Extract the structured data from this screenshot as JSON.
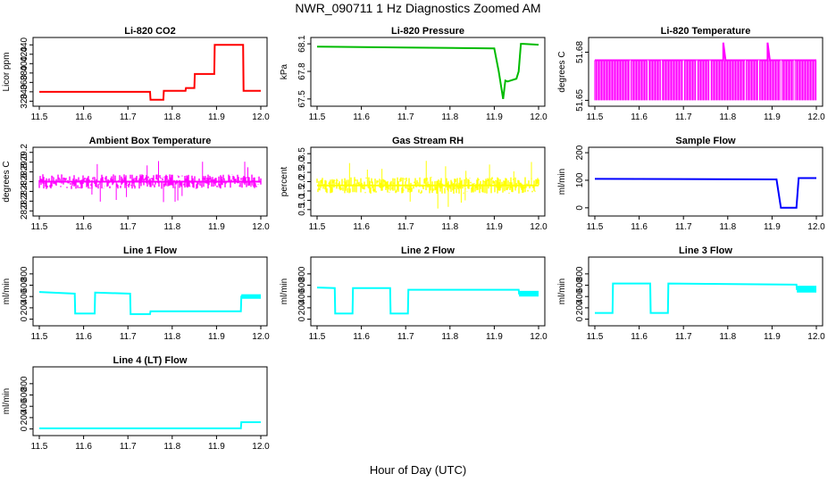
{
  "figure": {
    "title": "NWR_090711  1 Hz Diagnostics Zoomed AM",
    "xlabel": "Hour of Day (UTC)"
  },
  "chart_data": [
    {
      "type": "line",
      "title": "Li-820 CO2",
      "ylabel": "Licor ppm",
      "color": "#ff0000",
      "xlim": [
        11.5,
        12.0
      ],
      "ylim": [
        315,
        450
      ],
      "xticks": [
        11.5,
        11.6,
        11.7,
        11.8,
        11.9,
        12.0
      ],
      "yticks": [
        320,
        340,
        360,
        380,
        400,
        420,
        440
      ],
      "series": [
        {
          "x": [
            11.5,
            11.75,
            11.751,
            11.78,
            11.781,
            11.83,
            11.831,
            11.85,
            11.851,
            11.895,
            11.896,
            11.96,
            11.961,
            12.0
          ],
          "values": [
            340,
            340,
            323,
            323,
            342,
            342,
            348,
            348,
            378,
            378,
            440,
            440,
            342,
            342
          ]
        }
      ]
    },
    {
      "type": "line",
      "title": "Li-820 Pressure",
      "ylabel": "kPa",
      "color": "#00bb00",
      "xlim": [
        11.5,
        12.0
      ],
      "ylim": [
        67.45,
        68.14
      ],
      "xticks": [
        11.5,
        11.6,
        11.7,
        11.8,
        11.9,
        12.0
      ],
      "yticks": [
        67.5,
        67.8,
        68.1
      ],
      "series": [
        {
          "x": [
            11.5,
            11.7,
            11.9,
            11.91,
            11.92,
            11.925,
            11.93,
            11.95,
            11.955,
            11.96,
            11.965,
            12.0
          ],
          "values": [
            68.07,
            68.06,
            68.05,
            67.8,
            67.5,
            67.7,
            67.69,
            67.72,
            67.8,
            68.1,
            68.1,
            68.09
          ]
        }
      ]
    },
    {
      "type": "line",
      "title": "Li-820 Temperature",
      "ylabel": "degrees C",
      "color": "#ff00ff",
      "xlim": [
        11.5,
        12.0
      ],
      "ylim": [
        51.648,
        51.6875
      ],
      "xticks": [
        11.5,
        11.6,
        11.7,
        11.8,
        11.9,
        12.0
      ],
      "yticks": [
        51.65,
        51.68
      ],
      "series": [
        {
          "x": [
            11.5,
            11.79,
            11.79,
            11.795,
            11.89,
            11.89,
            11.895,
            12.0
          ],
          "values": [
            51.675,
            51.675,
            51.686,
            51.675,
            51.675,
            51.686,
            51.675,
            51.675
          ]
        }
      ]
    },
    {
      "type": "line",
      "title": "Ambient Box Temperature",
      "ylabel": "degrees C",
      "color": "#ff00ff",
      "xlim": [
        11.5,
        12.0
      ],
      "ylim": [
        27.95,
        29.25
      ],
      "xticks": [
        11.5,
        11.6,
        11.7,
        11.8,
        11.9,
        12.0
      ],
      "yticks": [
        28.0,
        28.2,
        28.4,
        28.6,
        28.8,
        29.0,
        29.2
      ],
      "series": [
        {
          "x": [
            11.5,
            12.0
          ],
          "values": [
            28.6,
            28.6
          ]
        }
      ]
    },
    {
      "type": "line",
      "title": "Gas Stream RH",
      "ylabel": "percent",
      "color": "#ffff00",
      "xlim": [
        11.5,
        12.0
      ],
      "ylim": [
        0.3,
        3.7
      ],
      "xticks": [
        11.5,
        11.6,
        11.7,
        11.8,
        11.9,
        12.0
      ],
      "yticks": [
        0.5,
        1.0,
        1.5,
        2.0,
        2.5,
        3.0,
        3.5
      ],
      "series": [
        {
          "x": [
            11.5,
            12.0
          ],
          "values": [
            1.8,
            1.8
          ]
        }
      ]
    },
    {
      "type": "line",
      "title": "Sample Flow",
      "ylabel": "ml/min",
      "color": "#0000ff",
      "xlim": [
        11.5,
        12.0
      ],
      "ylim": [
        -20,
        210
      ],
      "xticks": [
        11.5,
        11.6,
        11.7,
        11.8,
        11.9,
        12.0
      ],
      "yticks": [
        0,
        100,
        200
      ],
      "series": [
        {
          "x": [
            11.5,
            11.91,
            11.92,
            11.955,
            11.96,
            12.0
          ],
          "values": [
            105,
            103,
            0,
            0,
            108,
            108
          ]
        }
      ]
    },
    {
      "type": "line",
      "title": "Line 1 Flow",
      "ylabel": "ml/min",
      "color": "#00ffff",
      "xlim": [
        11.5,
        12.0
      ],
      "ylim": [
        -70,
        1050
      ],
      "xticks": [
        11.5,
        11.6,
        11.7,
        11.8,
        11.9,
        12.0
      ],
      "yticks": [
        0,
        200,
        400,
        600,
        800
      ],
      "series": [
        {
          "x": [
            11.5,
            11.58,
            11.581,
            11.625,
            11.626,
            11.705,
            11.706,
            11.75,
            11.751,
            11.955,
            11.956,
            12.0
          ],
          "values": [
            480,
            450,
            100,
            100,
            470,
            450,
            90,
            90,
            140,
            140,
            400,
            400
          ]
        }
      ]
    },
    {
      "type": "line",
      "title": "Line 2 Flow",
      "ylabel": "ml/min",
      "color": "#00ffff",
      "xlim": [
        11.5,
        12.0
      ],
      "ylim": [
        -70,
        1050
      ],
      "xticks": [
        11.5,
        11.6,
        11.7,
        11.8,
        11.9,
        12.0
      ],
      "yticks": [
        0,
        200,
        400,
        600,
        800
      ],
      "series": [
        {
          "x": [
            11.5,
            11.54,
            11.541,
            11.58,
            11.581,
            11.665,
            11.666,
            11.705,
            11.706,
            11.955,
            11.956,
            12.0
          ],
          "values": [
            560,
            550,
            100,
            100,
            550,
            550,
            100,
            100,
            520,
            520,
            450,
            450
          ]
        }
      ]
    },
    {
      "type": "line",
      "title": "Line 3 Flow",
      "ylabel": "ml/min",
      "color": "#00ffff",
      "xlim": [
        11.5,
        12.0
      ],
      "ylim": [
        -70,
        1050
      ],
      "xticks": [
        11.5,
        11.6,
        11.7,
        11.8,
        11.9,
        12.0
      ],
      "yticks": [
        0,
        200,
        400,
        600,
        800
      ],
      "series": [
        {
          "x": [
            11.5,
            11.54,
            11.541,
            11.625,
            11.626,
            11.665,
            11.666,
            11.955,
            11.956,
            12.0
          ],
          "values": [
            110,
            110,
            630,
            630,
            110,
            110,
            630,
            610,
            530,
            530
          ]
        }
      ]
    },
    {
      "type": "line",
      "title": "Line 4 (LT) Flow",
      "ylabel": "ml/min",
      "color": "#00ffff",
      "xlim": [
        11.5,
        12.0
      ],
      "ylim": [
        -70,
        1050
      ],
      "xticks": [
        11.5,
        11.6,
        11.7,
        11.8,
        11.9,
        12.0
      ],
      "yticks": [
        0,
        200,
        400,
        600,
        800
      ],
      "series": [
        {
          "x": [
            11.5,
            11.955,
            11.956,
            12.0
          ],
          "values": [
            10,
            10,
            120,
            120
          ]
        }
      ]
    }
  ]
}
